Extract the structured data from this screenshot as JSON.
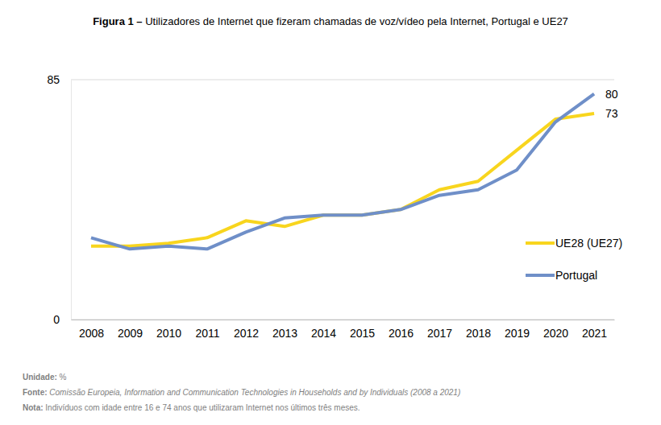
{
  "chart_data": {
    "type": "line",
    "title": "Figura 1 –",
    "subtitle": "Utilizadores de Internet que fizeram chamadas de voz/vídeo pela Internet, Portugal e UE27",
    "categories": [
      "2008",
      "2009",
      "2010",
      "2011",
      "2012",
      "2013",
      "2014",
      "2015",
      "2016",
      "2017",
      "2018",
      "2019",
      "2020",
      "2021"
    ],
    "series": [
      {
        "name": "UE28 (UE27)",
        "color": "#f8d51e",
        "values": [
          26,
          26,
          27,
          29,
          35,
          33,
          37,
          37,
          39,
          46,
          49,
          60,
          71,
          73
        ],
        "value_labels": [
          null,
          null,
          null,
          null,
          null,
          null,
          null,
          null,
          null,
          null,
          null,
          null,
          null,
          "73"
        ]
      },
      {
        "name": "Portugal",
        "color": "#6f8fc8",
        "values": [
          29,
          25,
          26,
          25,
          31,
          36,
          37,
          37,
          39,
          44,
          46,
          53,
          70,
          80
        ],
        "value_labels": [
          null,
          null,
          null,
          null,
          null,
          null,
          null,
          null,
          null,
          null,
          null,
          null,
          null,
          "80"
        ]
      }
    ],
    "ylim": [
      0,
      85
    ],
    "yticks": [
      0,
      85
    ],
    "grid": true,
    "legend": "right",
    "data_labels": true,
    "annotations": [
      {
        "label": "Unidade:",
        "text": "%"
      },
      {
        "label": "Fonte:",
        "text": "Comissão Europeia, Information and Communication Technologies in Households and by Individuals (2008 a 2021)"
      },
      {
        "label": "Nota:",
        "text": "Indivíduos com idade entre 16 e 74 anos que utilizaram Internet nos últimos três meses."
      }
    ]
  }
}
